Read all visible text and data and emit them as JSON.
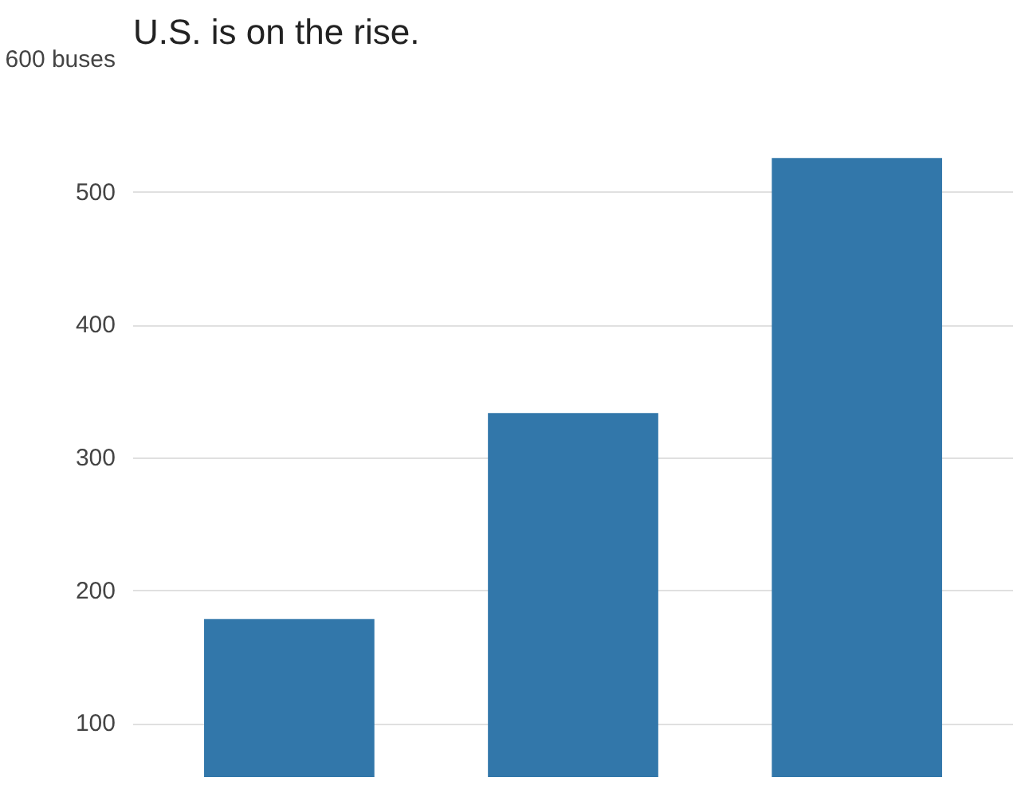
{
  "chart_data": {
    "type": "bar",
    "title": "U.S. is on the rise.",
    "categories": [
      null,
      null,
      null
    ],
    "values": [
      179,
      334,
      526
    ],
    "color": "#3277aa",
    "ylim": [
      60,
      600
    ],
    "yticks": [
      {
        "value": 100,
        "label": "100"
      },
      {
        "value": 200,
        "label": "200"
      },
      {
        "value": 300,
        "label": "300"
      },
      {
        "value": 400,
        "label": "400"
      },
      {
        "value": 500,
        "label": "500"
      },
      {
        "value": 600,
        "label": "600 buses"
      }
    ],
    "grid": "y"
  }
}
